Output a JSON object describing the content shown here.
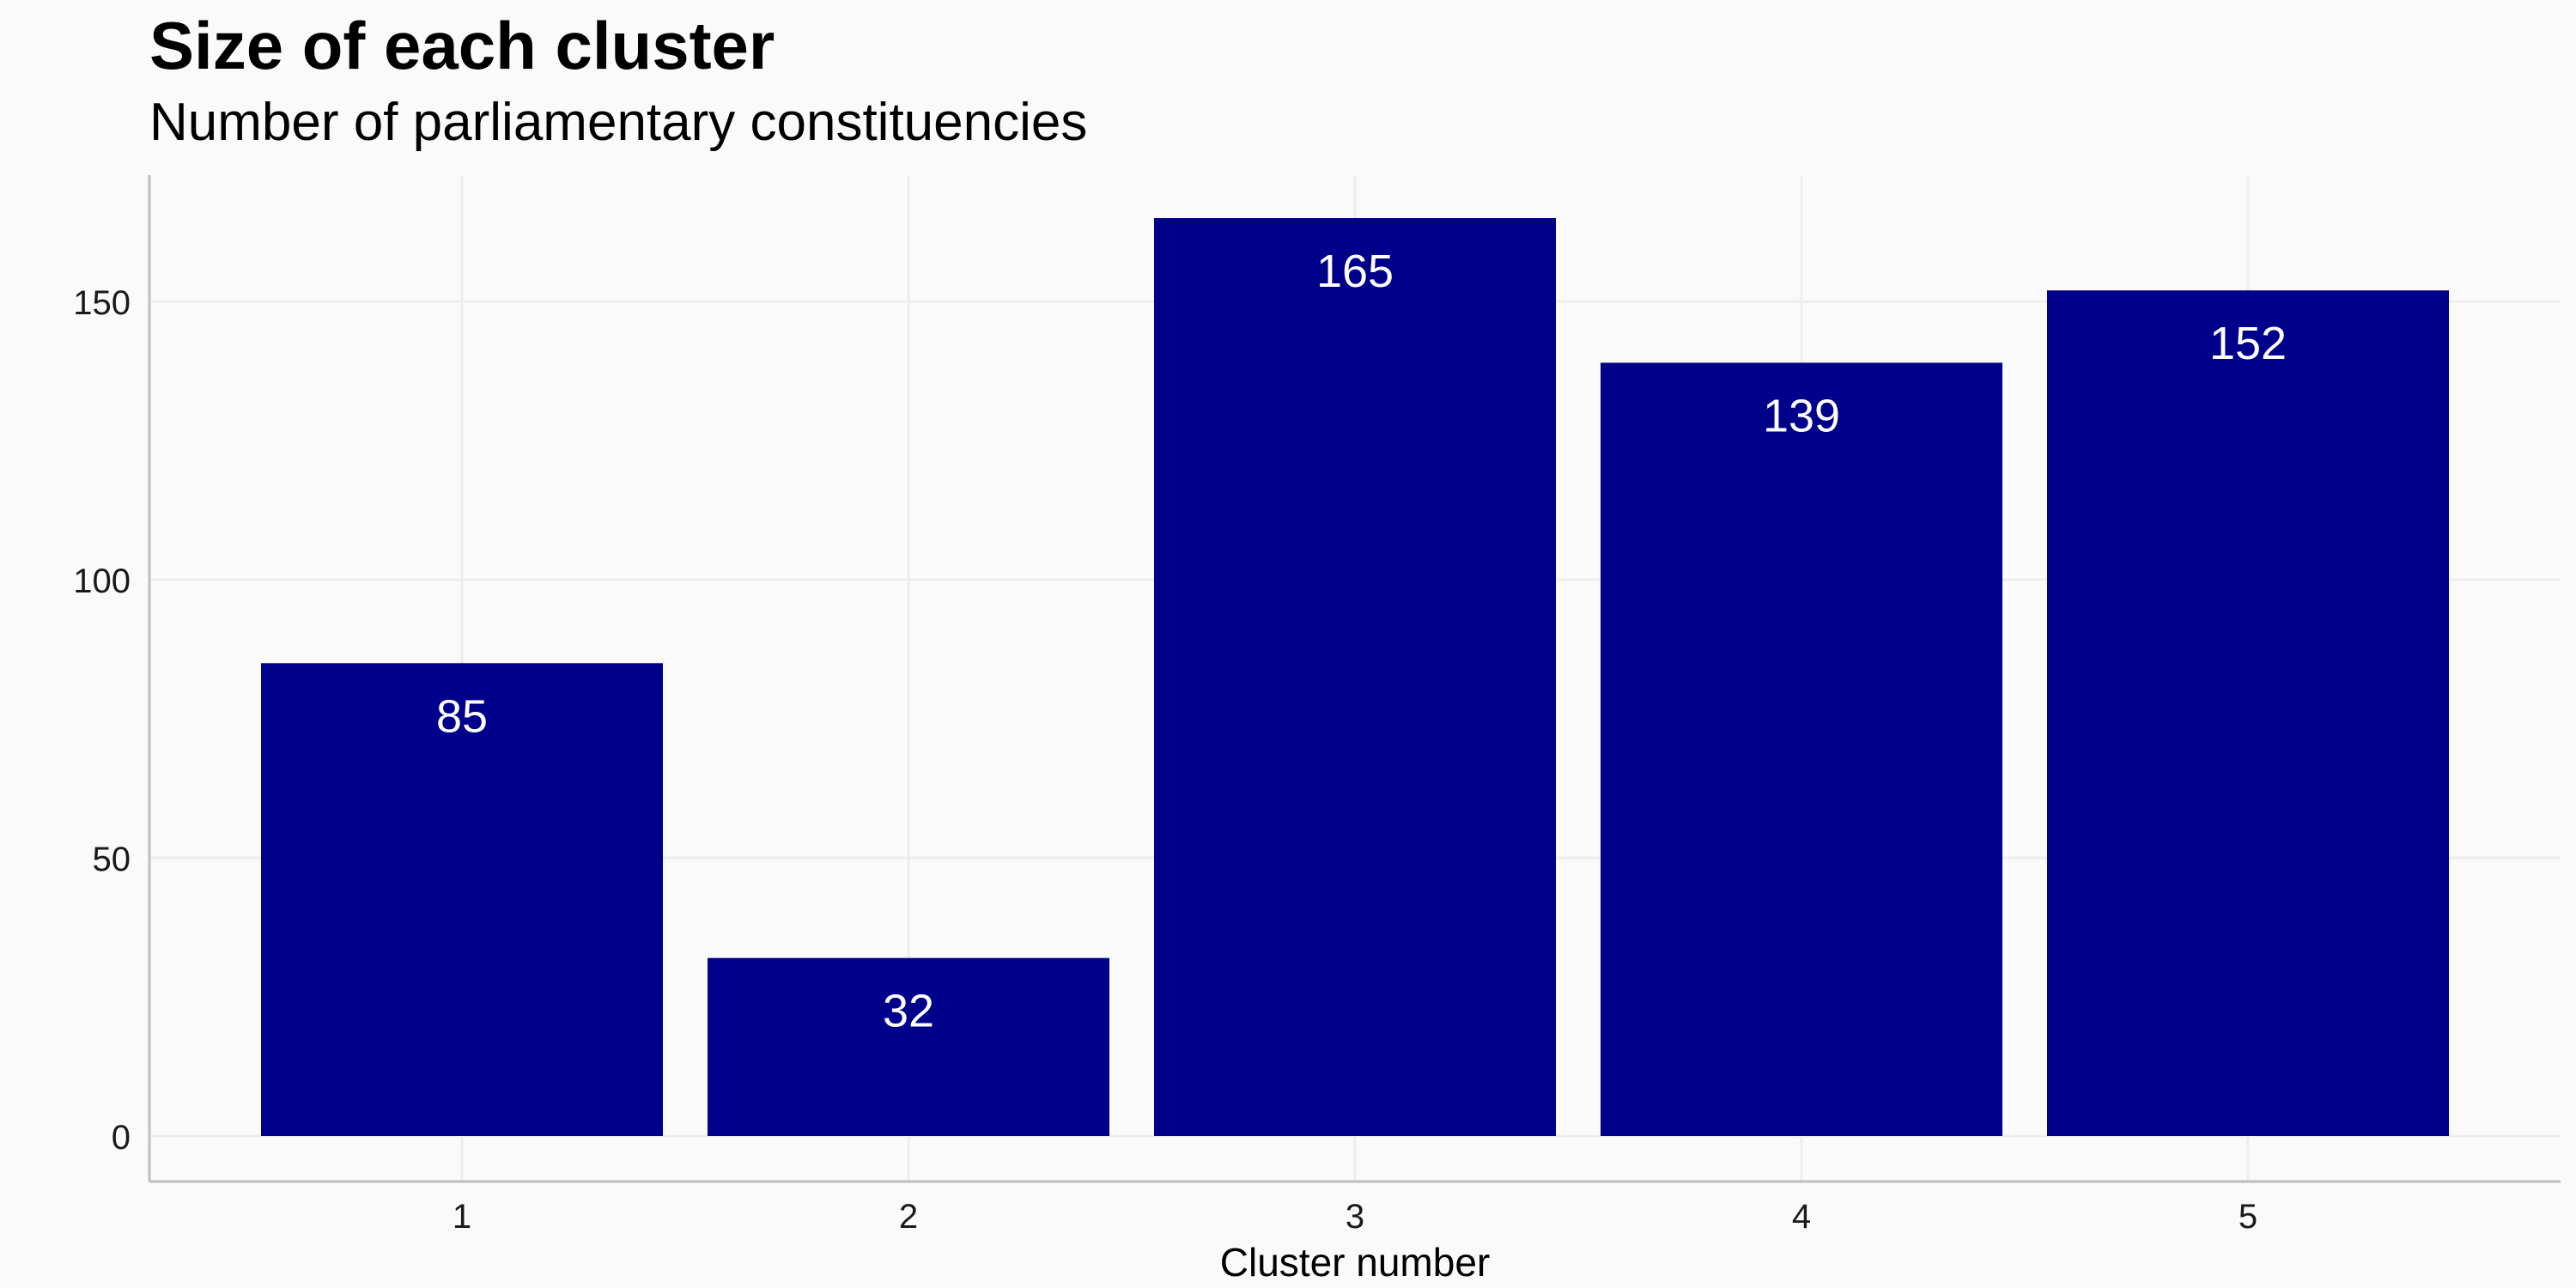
{
  "chart_data": {
    "type": "bar",
    "title": "Size of each cluster",
    "subtitle": "Number of parliamentary constituencies",
    "xlabel": "Cluster number",
    "ylabel": "",
    "categories": [
      "1",
      "2",
      "3",
      "4",
      "5"
    ],
    "values": [
      85,
      32,
      165,
      139,
      152
    ],
    "ylim": [
      0,
      172
    ],
    "yticks": [
      0,
      50,
      100,
      150
    ],
    "grid": true,
    "legend": "none",
    "bar_color": "#00008B",
    "data_label_color": "#FFFFFF"
  }
}
